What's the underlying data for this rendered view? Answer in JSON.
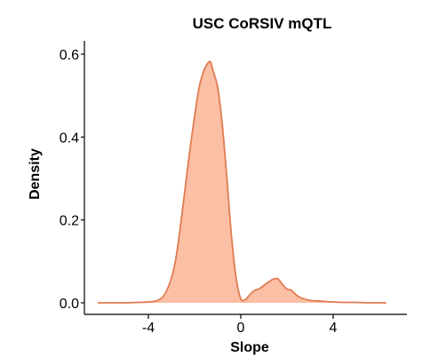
{
  "chart_data": {
    "type": "area",
    "title": "USC CoRSIV mQTL",
    "xlabel": "Slope",
    "ylabel": "Density",
    "xlim": [
      -6.5,
      6.5
    ],
    "ylim": [
      0,
      0.6
    ],
    "xticks": [
      -4,
      0,
      4
    ],
    "xtick_labels": [
      "-4",
      "0",
      "4"
    ],
    "yticks": [
      0.0,
      0.2,
      0.4,
      0.6
    ],
    "ytick_labels": [
      "0.0",
      "0.2",
      "0.4",
      "0.6"
    ],
    "grid": false,
    "legend": "none",
    "colors": {
      "fill": "#fbbfa5",
      "line": "#e07c52"
    },
    "series": [
      {
        "x": [
          -6.2,
          -5.5,
          -5.0,
          -4.5,
          -4.0,
          -3.6,
          -3.3,
          -3.0,
          -2.8,
          -2.6,
          -2.4,
          -2.2,
          -2.0,
          -1.8,
          -1.6,
          -1.4,
          -1.3,
          -1.2,
          -1.0,
          -0.8,
          -0.6,
          -0.4,
          -0.2,
          0.0,
          0.2,
          0.4,
          0.6,
          0.8,
          1.0,
          1.2,
          1.4,
          1.6,
          1.8,
          2.0,
          2.2,
          2.5,
          3.0,
          3.5,
          4.0,
          4.5,
          5.0,
          5.5,
          6.0,
          6.3
        ],
        "y": [
          0.0,
          0.0,
          0.0,
          0.001,
          0.002,
          0.006,
          0.02,
          0.06,
          0.11,
          0.19,
          0.28,
          0.37,
          0.45,
          0.52,
          0.56,
          0.58,
          0.58,
          0.56,
          0.52,
          0.43,
          0.3,
          0.16,
          0.06,
          0.01,
          0.008,
          0.02,
          0.03,
          0.034,
          0.042,
          0.05,
          0.057,
          0.058,
          0.045,
          0.033,
          0.03,
          0.015,
          0.006,
          0.004,
          0.002,
          0.001,
          0.001,
          0.0,
          0.0,
          0.0
        ]
      }
    ]
  }
}
